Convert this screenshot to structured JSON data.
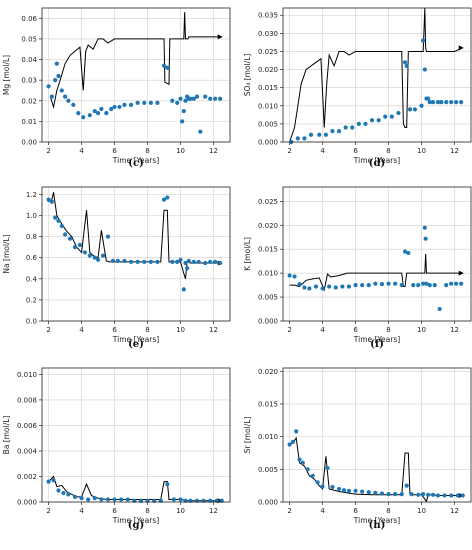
{
  "chart_data": [
    {
      "id": "c",
      "letter": "(c)",
      "type": "scatter+line",
      "ylabel": "Mg [mol/L]",
      "xlabel": "Time [Years]",
      "xlim": [
        1.6,
        13
      ],
      "ylim": [
        0,
        0.065
      ],
      "xticks": [
        2,
        4,
        6,
        8,
        10,
        12
      ],
      "yticks": [
        0.0,
        0.01,
        0.02,
        0.03,
        0.04,
        0.05,
        0.06
      ],
      "ytick_labels": [
        "0.00",
        "0.01",
        "0.02",
        "0.03",
        "0.04",
        "0.05",
        "0.06"
      ],
      "grid": true,
      "line": {
        "name": "",
        "x": [
          2.1,
          2.3,
          2.5,
          2.7,
          3.0,
          3.3,
          3.6,
          3.9,
          4.1,
          4.25,
          4.4,
          4.7,
          5.0,
          5.3,
          5.6,
          6,
          7,
          8,
          8.8,
          9.0,
          9.05,
          9.3,
          9.35,
          9.5,
          10,
          10.2,
          10.25,
          10.3,
          10.45,
          10.5,
          11,
          11.5,
          12,
          12.5
        ],
        "y": [
          0.022,
          0.017,
          0.025,
          0.03,
          0.038,
          0.042,
          0.044,
          0.046,
          0.025,
          0.044,
          0.047,
          0.045,
          0.05,
          0.05,
          0.048,
          0.05,
          0.05,
          0.05,
          0.05,
          0.05,
          0.029,
          0.028,
          0.05,
          0.05,
          0.05,
          0.05,
          0.063,
          0.05,
          0.05,
          0.051,
          0.051,
          0.051,
          0.051,
          0.051
        ]
      },
      "points": {
        "name": "",
        "x": [
          2.0,
          2.2,
          2.4,
          2.5,
          2.6,
          2.8,
          3.0,
          3.2,
          3.5,
          3.8,
          4.1,
          4.5,
          4.8,
          5.0,
          5.2,
          5.5,
          5.8,
          6,
          6.3,
          6.6,
          7,
          7.4,
          7.8,
          8.2,
          8.6,
          9,
          9.2,
          9.5,
          9.8,
          10,
          10.1,
          10.2,
          10.3,
          10.4,
          10.5,
          10.6,
          10.8,
          11.0,
          11.2,
          11.5,
          11.8,
          12.1,
          12.4
        ],
        "y": [
          0.027,
          0.022,
          0.03,
          0.038,
          0.032,
          0.025,
          0.022,
          0.02,
          0.018,
          0.014,
          0.012,
          0.013,
          0.015,
          0.014,
          0.016,
          0.014,
          0.016,
          0.017,
          0.017,
          0.018,
          0.018,
          0.019,
          0.019,
          0.019,
          0.019,
          0.037,
          0.036,
          0.02,
          0.019,
          0.021,
          0.01,
          0.015,
          0.02,
          0.022,
          0.021,
          0.021,
          0.021,
          0.022,
          0.005,
          0.022,
          0.021,
          0.021,
          0.021
        ]
      }
    },
    {
      "id": "d",
      "letter": "(d)",
      "type": "scatter+line",
      "ylabel": "SO₄ [mol/L]",
      "xlabel": "Time [Years]",
      "xlim": [
        1.6,
        13
      ],
      "ylim": [
        0,
        0.037
      ],
      "xticks": [
        2,
        4,
        6,
        8,
        10,
        12
      ],
      "yticks": [
        0.0,
        0.005,
        0.01,
        0.015,
        0.02,
        0.025,
        0.03,
        0.035
      ],
      "ytick_labels": [
        "0.000",
        "0.005",
        "0.010",
        "0.015",
        "0.020",
        "0.025",
        "0.030",
        "0.035"
      ],
      "grid": true,
      "line": {
        "name": "",
        "x": [
          2.0,
          2.3,
          2.5,
          2.7,
          3.0,
          3.3,
          3.6,
          3.9,
          4.1,
          4.25,
          4.4,
          4.7,
          5.0,
          5.3,
          5.6,
          6,
          7,
          8,
          8.8,
          8.9,
          9.0,
          9.1,
          9.2,
          9.3,
          10,
          10.1,
          10.2,
          10.25,
          10.3,
          10.5,
          11,
          11.5,
          12,
          12.5
        ],
        "y": [
          0.0,
          0.004,
          0.01,
          0.016,
          0.02,
          0.021,
          0.022,
          0.023,
          0.004,
          0.016,
          0.024,
          0.021,
          0.025,
          0.025,
          0.024,
          0.025,
          0.025,
          0.025,
          0.025,
          0.005,
          0.004,
          0.004,
          0.025,
          0.025,
          0.025,
          0.025,
          0.037,
          0.026,
          0.025,
          0.025,
          0.025,
          0.025,
          0.025,
          0.026
        ]
      },
      "points": {
        "name": "",
        "x": [
          2.1,
          2.5,
          2.9,
          3.3,
          3.8,
          4.2,
          4.6,
          5.0,
          5.4,
          5.8,
          6.2,
          6.6,
          7,
          7.4,
          7.8,
          8.2,
          8.6,
          9.0,
          9.1,
          9.3,
          9.6,
          10,
          10.1,
          10.2,
          10.3,
          10.4,
          10.5,
          10.7,
          11.0,
          11.2,
          11.5,
          11.8,
          12.1,
          12.4
        ],
        "y": [
          0.0,
          0.001,
          0.001,
          0.002,
          0.002,
          0.002,
          0.003,
          0.003,
          0.004,
          0.004,
          0.005,
          0.005,
          0.006,
          0.006,
          0.007,
          0.007,
          0.008,
          0.022,
          0.021,
          0.009,
          0.009,
          0.01,
          0.028,
          0.02,
          0.012,
          0.012,
          0.011,
          0.011,
          0.011,
          0.011,
          0.011,
          0.011,
          0.011,
          0.011
        ]
      }
    },
    {
      "id": "e",
      "letter": "(e)",
      "type": "scatter+line",
      "ylabel": "Na [mol/L]",
      "xlabel": "Time [Years]",
      "xlim": [
        1.6,
        13
      ],
      "ylim": [
        0,
        1.27
      ],
      "xticks": [
        2,
        4,
        6,
        8,
        10,
        12
      ],
      "yticks": [
        0.0,
        0.2,
        0.4,
        0.6,
        0.8,
        1.0,
        1.2
      ],
      "ytick_labels": [
        "0.0",
        "0.2",
        "0.4",
        "0.6",
        "0.8",
        "1.0",
        "1.2"
      ],
      "grid": true,
      "line": {
        "name": "",
        "x": [
          2.0,
          2.2,
          2.3,
          2.5,
          2.8,
          3.1,
          3.4,
          3.7,
          4.0,
          4.3,
          4.5,
          4.7,
          5.0,
          5.2,
          5.5,
          5.7,
          6,
          7,
          8,
          8.8,
          9.0,
          9.2,
          9.3,
          10,
          10.2,
          10.3,
          10.4,
          10.6,
          11,
          11.5,
          12,
          12.5
        ],
        "y": [
          1.13,
          1.15,
          1.22,
          1.0,
          0.92,
          0.85,
          0.8,
          0.7,
          0.65,
          1.05,
          0.65,
          0.62,
          0.6,
          0.86,
          0.57,
          0.56,
          0.56,
          0.56,
          0.56,
          0.56,
          1.05,
          1.05,
          0.56,
          0.56,
          0.45,
          0.4,
          0.56,
          0.55,
          0.55,
          0.55,
          0.55,
          0.55
        ]
      },
      "points": {
        "name": "",
        "x": [
          2.0,
          2.2,
          2.4,
          2.6,
          2.8,
          3.0,
          3.3,
          3.6,
          3.9,
          4.2,
          4.5,
          4.8,
          5.0,
          5.3,
          5.6,
          5.9,
          6.2,
          6.6,
          7,
          7.4,
          7.8,
          8.2,
          8.6,
          9.0,
          9.2,
          9.5,
          9.8,
          10,
          10.2,
          10.3,
          10.4,
          10.5,
          10.8,
          11.1,
          11.5,
          11.8,
          12.1,
          12.4
        ],
        "y": [
          1.15,
          1.13,
          0.98,
          0.95,
          0.9,
          0.82,
          0.78,
          0.7,
          0.72,
          0.65,
          0.62,
          0.6,
          0.58,
          0.62,
          0.8,
          0.57,
          0.57,
          0.57,
          0.56,
          0.56,
          0.56,
          0.56,
          0.56,
          1.15,
          1.17,
          0.56,
          0.56,
          0.58,
          0.3,
          0.55,
          0.5,
          0.57,
          0.56,
          0.56,
          0.55,
          0.56,
          0.56,
          0.55
        ]
      }
    },
    {
      "id": "f",
      "letter": "(f)",
      "type": "scatter+line",
      "ylabel": "K [mol/L]",
      "xlabel": "Time [Years]",
      "xlim": [
        1.6,
        13
      ],
      "ylim": [
        0,
        0.028
      ],
      "xticks": [
        2,
        4,
        6,
        8,
        10,
        12
      ],
      "yticks": [
        0.0,
        0.005,
        0.01,
        0.015,
        0.02,
        0.025
      ],
      "ytick_labels": [
        "0.000",
        "0.005",
        "0.010",
        "0.015",
        "0.020",
        "0.025"
      ],
      "grid": true,
      "line": {
        "name": "",
        "x": [
          2.0,
          2.3,
          2.6,
          3.0,
          3.4,
          3.8,
          4.1,
          4.3,
          4.5,
          5.0,
          5.5,
          6,
          7,
          8,
          8.8,
          8.9,
          9.0,
          9.1,
          10,
          10.2,
          10.25,
          10.3,
          10.5,
          11,
          12,
          12.5
        ],
        "y": [
          0.0075,
          0.0075,
          0.0072,
          0.0085,
          0.0088,
          0.009,
          0.0065,
          0.0098,
          0.0092,
          0.0095,
          0.01,
          0.01,
          0.01,
          0.01,
          0.01,
          0.0072,
          0.0072,
          0.01,
          0.01,
          0.01,
          0.014,
          0.01,
          0.01,
          0.01,
          0.01,
          0.01
        ]
      },
      "points": {
        "name": "",
        "x": [
          2.0,
          2.3,
          2.6,
          2.9,
          3.2,
          3.6,
          4.0,
          4.4,
          4.8,
          5.2,
          5.6,
          6.0,
          6.4,
          6.8,
          7.2,
          7.6,
          8.0,
          8.4,
          8.8,
          9.0,
          9.2,
          9.5,
          9.8,
          10.1,
          10.2,
          10.25,
          10.3,
          10.5,
          10.8,
          11.1,
          11.5,
          11.8,
          12.1,
          12.4
        ],
        "y": [
          0.0095,
          0.0093,
          0.0077,
          0.007,
          0.0068,
          0.0072,
          0.0068,
          0.0072,
          0.007,
          0.0072,
          0.0072,
          0.0075,
          0.0075,
          0.0075,
          0.0078,
          0.0077,
          0.0078,
          0.0078,
          0.0075,
          0.0145,
          0.0142,
          0.0075,
          0.0075,
          0.0078,
          0.0195,
          0.0172,
          0.0078,
          0.0075,
          0.0075,
          0.0025,
          0.0075,
          0.0078,
          0.0078,
          0.0078
        ]
      }
    },
    {
      "id": "g",
      "letter": "(g)",
      "type": "scatter+line",
      "ylabel": "Ba [mol/L]",
      "xlabel": "Time [Years]",
      "xlim": [
        1.6,
        13
      ],
      "ylim": [
        0,
        0.0105
      ],
      "xticks": [
        2,
        4,
        6,
        8,
        10,
        12
      ],
      "yticks": [
        0.0,
        0.002,
        0.004,
        0.006,
        0.008,
        0.01
      ],
      "ytick_labels": [
        "0.000",
        "0.002",
        "0.004",
        "0.006",
        "0.008",
        "0.010"
      ],
      "grid": true,
      "line": {
        "name": "",
        "x": [
          2.0,
          2.3,
          2.5,
          2.8,
          3.1,
          3.4,
          3.7,
          4.0,
          4.3,
          4.6,
          5.0,
          5.5,
          6,
          7,
          8,
          8.8,
          9.0,
          9.2,
          9.3,
          10,
          10.5,
          11,
          12,
          12.5
        ],
        "y": [
          0.0016,
          0.002,
          0.0012,
          0.0013,
          0.0008,
          0.0006,
          0.0004,
          0.0004,
          0.0014,
          0.0005,
          0.0003,
          0.0002,
          0.0002,
          0.0002,
          0.0002,
          0.0002,
          0.0016,
          0.0016,
          0.0002,
          0.0002,
          0.0001,
          0.0001,
          0.0001,
          0.0001
        ]
      },
      "points": {
        "name": "",
        "x": [
          2.0,
          2.3,
          2.6,
          2.9,
          3.2,
          3.6,
          4.0,
          4.4,
          4.8,
          5.2,
          5.6,
          6.0,
          6.4,
          6.8,
          7.2,
          7.6,
          8.0,
          8.4,
          8.8,
          9.2,
          9.6,
          10.0,
          10.3,
          10.6,
          11.0,
          11.4,
          11.8,
          12.2,
          12.5
        ],
        "y": [
          0.0016,
          0.0017,
          0.0009,
          0.0007,
          0.0006,
          0.0004,
          0.0003,
          0.0002,
          0.0003,
          0.0002,
          0.0002,
          0.0002,
          0.0002,
          0.0002,
          0.0001,
          0.0001,
          0.0001,
          0.0001,
          0.0001,
          0.0014,
          0.0002,
          0.0002,
          0.0001,
          0.0001,
          0.0001,
          0.0001,
          0.0001,
          0.0001,
          0.0001
        ]
      }
    },
    {
      "id": "h",
      "letter": "(h)",
      "type": "scatter+line",
      "ylabel": "Sr [mol/L]",
      "xlabel": "Time [Years]",
      "xlim": [
        1.6,
        13
      ],
      "ylim": [
        0,
        0.0205
      ],
      "xticks": [
        2,
        4,
        6,
        8,
        10,
        12
      ],
      "yticks": [
        0.0,
        0.005,
        0.01,
        0.015,
        0.02
      ],
      "ytick_labels": [
        "0.000",
        "0.005",
        "0.010",
        "0.015",
        "0.020"
      ],
      "grid": true,
      "line": {
        "name": "",
        "x": [
          2.0,
          2.2,
          2.4,
          2.6,
          2.9,
          3.2,
          3.5,
          3.8,
          4.0,
          4.2,
          4.4,
          4.7,
          5.0,
          5.5,
          6,
          7,
          8,
          8.8,
          9.0,
          9.2,
          9.3,
          10,
          10.3,
          10.4,
          10.6,
          11,
          12,
          12.5
        ],
        "y": [
          0.0088,
          0.009,
          0.0098,
          0.006,
          0.0055,
          0.004,
          0.0035,
          0.0025,
          0.002,
          0.007,
          0.002,
          0.0018,
          0.0016,
          0.0014,
          0.0012,
          0.0011,
          0.0011,
          0.0011,
          0.0075,
          0.0075,
          0.0011,
          0.0011,
          0.0001,
          0.0011,
          0.0011,
          0.001,
          0.001,
          0.001
        ]
      },
      "points": {
        "name": "",
        "x": [
          2.0,
          2.2,
          2.4,
          2.6,
          2.8,
          3.1,
          3.4,
          3.7,
          4.0,
          4.3,
          4.6,
          5.0,
          5.3,
          5.6,
          6.0,
          6.4,
          6.8,
          7.2,
          7.6,
          8.0,
          8.4,
          8.8,
          9.1,
          9.4,
          9.8,
          10.1,
          10.4,
          10.7,
          11.0,
          11.4,
          11.8,
          12.2,
          12.5
        ],
        "y": [
          0.0088,
          0.0092,
          0.0108,
          0.0065,
          0.006,
          0.005,
          0.004,
          0.003,
          0.0024,
          0.0052,
          0.0023,
          0.002,
          0.0018,
          0.0017,
          0.0017,
          0.0016,
          0.0015,
          0.0014,
          0.0013,
          0.0012,
          0.0012,
          0.0012,
          0.0025,
          0.0012,
          0.0011,
          0.0012,
          0.0011,
          0.0011,
          0.001,
          0.001,
          0.001,
          0.001,
          0.001
        ]
      }
    }
  ],
  "style": {
    "line_color": "#000000",
    "point_color": "#1f77b4"
  }
}
